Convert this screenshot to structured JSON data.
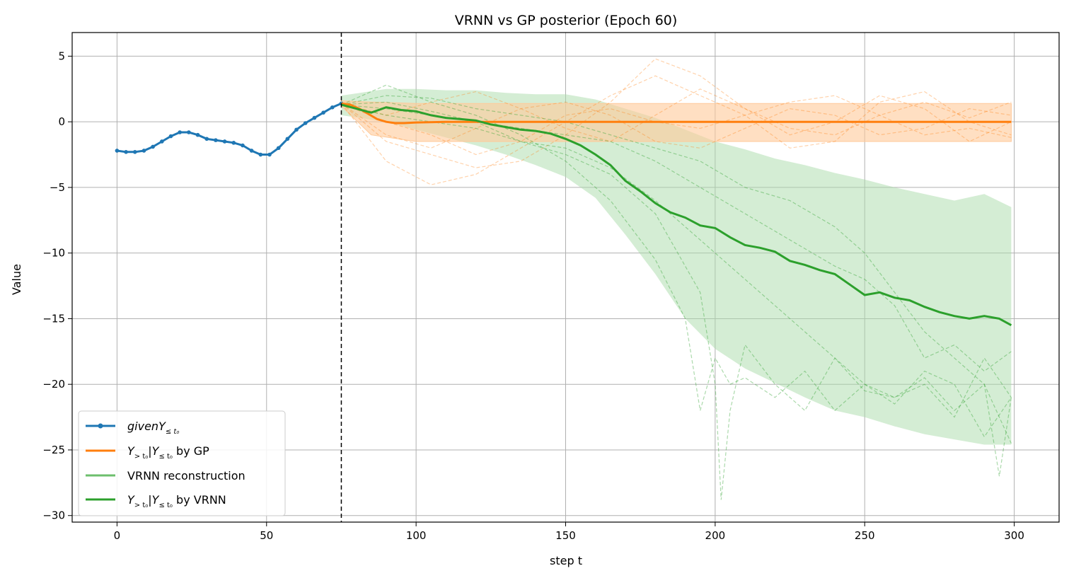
{
  "chart_data": {
    "type": "line",
    "title": "VRNN vs GP posterior (Epoch 60)",
    "xlabel": "step t",
    "ylabel": "Value",
    "xlim": [
      -15,
      315
    ],
    "ylim": [
      -30.5,
      6.8
    ],
    "xticks": [
      0,
      50,
      100,
      150,
      200,
      250,
      300
    ],
    "yticks": [
      5,
      0,
      -5,
      -10,
      -15,
      -20,
      -25,
      -30
    ],
    "x_tick_labels": [
      "0",
      "50",
      "100",
      "150",
      "200",
      "250",
      "300"
    ],
    "y_tick_labels": [
      "5",
      "0",
      "−5",
      "−10",
      "−15",
      "−20",
      "−25",
      "−30"
    ],
    "grid": true,
    "legend_position": "lower-left",
    "t0": 75,
    "colors": {
      "given": "#1f77b4",
      "gp": "#ff7f0e",
      "vrnn_recon": "#6dbf6d",
      "vrnn": "#2ca02c",
      "gp_band": "#ffc999",
      "vrnn_band": "#a9dba9",
      "divider": "#000000"
    },
    "legend": [
      {
        "key": "given",
        "prefix": "given",
        "main": "Y",
        "sub": "≤ t₀",
        "suffix": ""
      },
      {
        "key": "gp",
        "prefix": "",
        "main": "Y",
        "sub": "> t₀",
        "mid": "|Y",
        "sub2": "≤ t₀",
        "suffix": " by GP"
      },
      {
        "key": "vrnn_recon",
        "prefix": "",
        "main": "VRNN reconstruction",
        "sub": "",
        "suffix": ""
      },
      {
        "key": "vrnn",
        "prefix": "",
        "main": "Y",
        "sub": "> t₀",
        "mid": "|Y",
        "sub2": "≤ t₀",
        "suffix": " by VRNN"
      }
    ],
    "series": [
      {
        "name": "given",
        "x": [
          0,
          3,
          6,
          9,
          12,
          15,
          18,
          21,
          24,
          27,
          30,
          33,
          36,
          39,
          42,
          45,
          48,
          51,
          54,
          57,
          60,
          63,
          66,
          69,
          72,
          75
        ],
        "y": [
          -2.2,
          -2.3,
          -2.3,
          -2.2,
          -1.9,
          -1.5,
          -1.1,
          -0.8,
          -0.8,
          -1.0,
          -1.3,
          -1.4,
          -1.5,
          -1.6,
          -1.8,
          -2.2,
          -2.5,
          -2.5,
          -2.0,
          -1.3,
          -0.6,
          -0.1,
          0.3,
          0.7,
          1.1,
          1.4
        ]
      },
      {
        "name": "gp_mean",
        "x": [
          75,
          78,
          81,
          84,
          87,
          90,
          93,
          96,
          100,
          110,
          120,
          150,
          200,
          250,
          299
        ],
        "y": [
          1.4,
          1.3,
          1.0,
          0.6,
          0.2,
          0.0,
          -0.1,
          -0.1,
          -0.05,
          0.0,
          0.0,
          0.0,
          0.0,
          0.0,
          0.0
        ]
      },
      {
        "name": "vrnn_mean",
        "x": [
          75,
          80,
          85,
          90,
          95,
          100,
          105,
          110,
          115,
          120,
          125,
          130,
          135,
          140,
          145,
          150,
          155,
          160,
          165,
          170,
          175,
          180,
          185,
          190,
          195,
          200,
          205,
          210,
          215,
          220,
          225,
          230,
          235,
          240,
          245,
          250,
          255,
          260,
          265,
          270,
          275,
          280,
          285,
          290,
          295,
          299
        ],
        "y": [
          1.3,
          1.0,
          0.7,
          1.1,
          0.9,
          0.8,
          0.5,
          0.3,
          0.2,
          0.1,
          -0.2,
          -0.4,
          -0.6,
          -0.7,
          -0.9,
          -1.3,
          -1.8,
          -2.5,
          -3.3,
          -4.5,
          -5.3,
          -6.2,
          -6.9,
          -7.3,
          -7.9,
          -8.1,
          -8.8,
          -9.4,
          -9.6,
          -9.9,
          -10.6,
          -10.9,
          -11.3,
          -11.6,
          -12.4,
          -13.2,
          -13.0,
          -13.4,
          -13.6,
          -14.1,
          -14.5,
          -14.8,
          -15.0,
          -14.8,
          -15.0,
          -15.5
        ]
      },
      {
        "name": "vrnn_band_upper",
        "x": [
          75,
          90,
          100,
          110,
          120,
          130,
          140,
          150,
          160,
          170,
          180,
          190,
          200,
          210,
          220,
          230,
          240,
          250,
          260,
          270,
          280,
          290,
          299
        ],
        "y": [
          2.0,
          2.5,
          2.5,
          2.4,
          2.4,
          2.2,
          2.1,
          2.1,
          1.7,
          1.0,
          0.3,
          -0.6,
          -1.5,
          -2.1,
          -2.8,
          -3.3,
          -3.9,
          -4.4,
          -5.0,
          -5.5,
          -6.0,
          -5.5,
          -6.5
        ]
      },
      {
        "name": "vrnn_band_lower",
        "x": [
          75,
          90,
          100,
          110,
          120,
          130,
          140,
          150,
          160,
          170,
          180,
          190,
          200,
          210,
          220,
          230,
          240,
          250,
          260,
          270,
          280,
          290,
          299
        ],
        "y": [
          0.5,
          0.0,
          -0.6,
          -1.2,
          -1.8,
          -2.5,
          -3.3,
          -4.2,
          -5.8,
          -8.6,
          -11.6,
          -15.0,
          -17.3,
          -18.8,
          -19.9,
          -21.0,
          -22.0,
          -22.5,
          -23.2,
          -23.8,
          -24.2,
          -24.6,
          -24.6
        ]
      },
      {
        "name": "gp_band",
        "x": [
          75,
          85,
          100,
          299
        ],
        "upper": [
          1.6,
          1.5,
          1.4,
          1.4
        ],
        "lower": [
          1.2,
          -1.0,
          -1.5,
          -1.5
        ]
      }
    ],
    "gp_samples": [
      {
        "x": [
          75,
          90,
          105,
          120,
          135,
          150,
          165,
          180,
          195,
          210,
          225,
          240,
          255,
          270,
          285,
          299
        ],
        "y": [
          1.4,
          -1.5,
          -2.5,
          -3.5,
          -3.0,
          -1.0,
          1.5,
          4.8,
          3.5,
          1.0,
          -0.5,
          -1.0,
          0.5,
          1.5,
          0.3,
          1.5
        ]
      },
      {
        "x": [
          75,
          90,
          105,
          120,
          135,
          150,
          165,
          180,
          195,
          210,
          225,
          240,
          255,
          270,
          285,
          299
        ],
        "y": [
          1.4,
          -3.0,
          -4.8,
          -4.0,
          -2.0,
          0.0,
          2.0,
          3.5,
          2.0,
          0.5,
          -2.0,
          -1.5,
          1.5,
          2.3,
          0.0,
          -1.0
        ]
      },
      {
        "x": [
          75,
          90,
          105,
          120,
          135,
          150,
          165,
          180,
          195,
          210,
          225,
          240,
          255,
          270,
          285,
          299
        ],
        "y": [
          1.4,
          0.5,
          1.5,
          2.3,
          1.0,
          -0.5,
          -1.5,
          0.5,
          2.5,
          1.0,
          -1.0,
          0.0,
          2.0,
          1.0,
          -1.5,
          0.0
        ]
      },
      {
        "x": [
          75,
          90,
          105,
          120,
          135,
          150,
          165,
          180,
          195,
          210,
          225,
          240,
          255,
          270,
          285,
          299
        ],
        "y": [
          1.4,
          -1.0,
          -2.0,
          -0.5,
          1.0,
          1.5,
          0.5,
          -1.5,
          -2.0,
          -0.5,
          1.0,
          0.5,
          -1.0,
          -0.5,
          1.0,
          0.5
        ]
      },
      {
        "x": [
          75,
          90,
          105,
          120,
          135,
          150,
          165,
          180,
          195,
          210,
          225,
          240,
          255,
          270,
          285,
          299
        ],
        "y": [
          1.4,
          0.0,
          -1.0,
          -2.5,
          -1.5,
          0.5,
          1.0,
          0.0,
          -0.5,
          0.5,
          1.5,
          2.0,
          0.5,
          -1.0,
          -0.5,
          -1.2
        ]
      }
    ],
    "vrnn_samples": [
      {
        "x": [
          75,
          90,
          105,
          120,
          135,
          150,
          165,
          180,
          190,
          195,
          200,
          205,
          210,
          220,
          230,
          240,
          250,
          260,
          270,
          280,
          290,
          299
        ],
        "y": [
          1.3,
          2.8,
          1.5,
          0.5,
          -1.0,
          -3.0,
          -6.0,
          -10.5,
          -15.0,
          -22.0,
          -18.0,
          -20.0,
          -19.5,
          -21.0,
          -19.0,
          -22.0,
          -20.0,
          -21.5,
          -19.0,
          -20.0,
          -24.0,
          -21.0
        ]
      },
      {
        "x": [
          75,
          90,
          105,
          120,
          135,
          150,
          165,
          180,
          195,
          200,
          202,
          205,
          210,
          220,
          230,
          240,
          250,
          260,
          270,
          280,
          290,
          299
        ],
        "y": [
          1.3,
          1.5,
          0.8,
          0.0,
          -1.5,
          -2.5,
          -4.0,
          -7.0,
          -13.0,
          -20.0,
          -28.8,
          -22.0,
          -17.0,
          -20.0,
          -22.0,
          -18.0,
          -20.5,
          -21.0,
          -20.0,
          -22.5,
          -18.0,
          -21.0
        ]
      },
      {
        "x": [
          75,
          90,
          105,
          120,
          135,
          150,
          165,
          180,
          195,
          210,
          220,
          230,
          240,
          250,
          260,
          270,
          280,
          290,
          299
        ],
        "y": [
          1.3,
          0.5,
          0.0,
          -0.5,
          -1.5,
          -2.0,
          -3.5,
          -6.0,
          -9.0,
          -12.0,
          -14.0,
          -16.0,
          -18.0,
          -20.0,
          -21.0,
          -19.5,
          -22.0,
          -20.0,
          -24.5
        ]
      },
      {
        "x": [
          75,
          90,
          105,
          120,
          135,
          150,
          165,
          180,
          195,
          210,
          225,
          240,
          250,
          260,
          270,
          280,
          290,
          295,
          299
        ],
        "y": [
          1.3,
          2.0,
          1.8,
          1.0,
          0.5,
          0.0,
          -1.0,
          -2.0,
          -3.0,
          -5.0,
          -6.0,
          -8.0,
          -10.0,
          -13.0,
          -16.0,
          -18.0,
          -20.0,
          -27.0,
          -21.0
        ]
      },
      {
        "x": [
          75,
          90,
          105,
          120,
          135,
          150,
          165,
          180,
          195,
          210,
          225,
          240,
          250,
          260,
          270,
          280,
          290,
          299
        ],
        "y": [
          1.3,
          1.0,
          0.5,
          0.0,
          -0.5,
          -1.0,
          -1.5,
          -3.0,
          -5.0,
          -7.0,
          -9.0,
          -11.0,
          -12.0,
          -14.0,
          -18.0,
          -17.0,
          -19.0,
          -17.5
        ]
      }
    ]
  }
}
